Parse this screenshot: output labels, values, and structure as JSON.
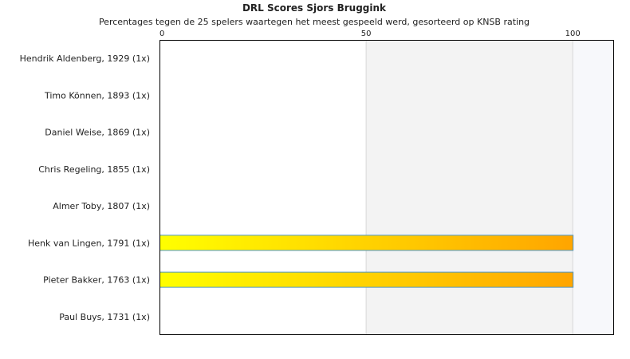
{
  "chart_data": {
    "type": "bar",
    "orientation": "horizontal",
    "title": "DRL Scores Sjors Bruggink",
    "subtitle": "Percentages tegen de 25 spelers waartegen het meest gespeeld werd, gesorteerd op KNSB rating",
    "xlim": [
      0,
      110
    ],
    "xticks": [
      "0",
      "50",
      "100"
    ],
    "xtick_values": [
      0,
      50,
      100
    ],
    "axis_position": "top",
    "categories": [
      "Hendrik Aldenberg, 1929 (1x)",
      "Timo Können, 1893 (1x)",
      "Daniel Weise, 1869 (1x)",
      "Chris Regeling, 1855 (1x)",
      "Almer Toby, 1807 (1x)",
      "Henk van Lingen, 1791 (1x)",
      "Pieter Bakker, 1763 (1x)",
      "Paul Buys, 1731 (1x)"
    ],
    "values": [
      0,
      0,
      0,
      0,
      0,
      100,
      100,
      0
    ],
    "colors": {
      "bar_start": "#ffff00",
      "bar_end": "#ffa500",
      "bar_border": "#4f96c4",
      "band_50_100": "#f3f3f3",
      "band_100_110": "#f7f8fb",
      "plot_border": "#000000",
      "gridline": "#d8d8d8"
    }
  }
}
